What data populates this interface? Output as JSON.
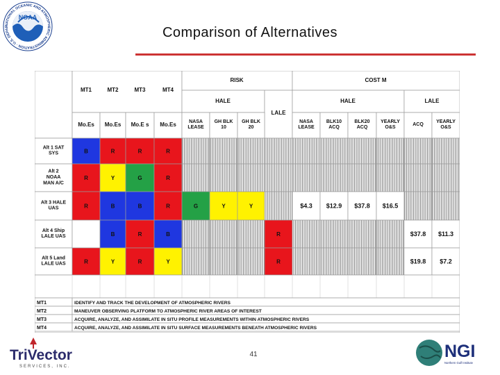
{
  "slide": {
    "title": "Comparison of Alternatives",
    "page_number": "41"
  },
  "table": {
    "group_headers": {
      "risk": "RISK",
      "cost": "COST M"
    },
    "mt_headers": [
      "MT1",
      "MT2",
      "MT3",
      "MT4"
    ],
    "moe_headers": [
      "Mo.Es",
      "Mo.Es",
      "Mo.E s",
      "Mo.Es"
    ],
    "risk_sub": {
      "hale": "HALE",
      "lale": "LALE"
    },
    "risk_cols": [
      "NASA\nLEASE",
      "GH BLK\n10",
      "GH BLK\n20"
    ],
    "cost_sub": {
      "hale": "HALE",
      "lale": "LALE"
    },
    "cost_cols": [
      "NASA\nLEASE",
      "BLK10\nACQ",
      "BLK20\nACQ",
      "YEARLY\nO&S",
      "ACQ",
      "YEARLY\nO&S"
    ],
    "rows": [
      {
        "label": "Alt 1   SAT\nSYS",
        "mt": [
          "B",
          "R",
          "R",
          "R"
        ],
        "risk": [
          "",
          "",
          "",
          ""
        ],
        "cost": [
          "",
          "",
          "",
          "",
          "",
          ""
        ]
      },
      {
        "label": "Alt 2\nNOAA\nMAN A/C",
        "mt": [
          "R",
          "Y",
          "G",
          "R"
        ],
        "risk": [
          "",
          "",
          "",
          ""
        ],
        "cost": [
          "",
          "",
          "",
          "",
          "",
          ""
        ]
      },
      {
        "label": "Alt 3 HALE\nUAS",
        "mt": [
          "R",
          "B",
          "B",
          "R"
        ],
        "risk": [
          "G",
          "Y",
          "Y",
          ""
        ],
        "cost": [
          "$4.3",
          "$12.9",
          "$37.8",
          "$16.5",
          "",
          ""
        ]
      },
      {
        "label": "Alt 4 Ship\nLALE UAS",
        "mt": [
          "",
          "B",
          "R",
          "B"
        ],
        "risk": [
          "",
          "",
          "",
          "R"
        ],
        "cost": [
          "",
          "",
          "",
          "",
          "$37.8",
          "$11.3"
        ]
      },
      {
        "label": "Alt 5 Land\nLALE UAS",
        "mt": [
          "R",
          "Y",
          "R",
          "Y"
        ],
        "risk": [
          "",
          "",
          "",
          "R"
        ],
        "cost": [
          "",
          "",
          "",
          "",
          "$19.8",
          "$7.2"
        ]
      }
    ],
    "legend": [
      {
        "key": "MT1",
        "text": "IDENTIFY AND TRACK THE DEVELOPMENT OF ATMOSPHERIC RIVERS"
      },
      {
        "key": "MT2",
        "text": "MANEUVER OBSERVING PLATFORM TO ATMOSPHERIC RIVER AREAS OF INTEREST"
      },
      {
        "key": "MT3",
        "text": "ACQUIRE, ANALYZE, AND ASSIMILATE IN SITU PROFILE MEASUREMENTS WITHIN ATMOSPHERIC RIVERS"
      },
      {
        "key": "MT4",
        "text": "ACQUIRE, ANALYZE, AND ASSIMILATE IN SITU SURFACE MEASUREMENTS BENEATH ATMOSPHERIC RIVERS"
      }
    ],
    "colors": {
      "B": "#1f37e0",
      "R": "#e8151c",
      "Y": "#fff200",
      "G": "#24a146"
    }
  },
  "logos": {
    "noaa": {
      "text": "NOAA",
      "ring_text": "NATIONAL OCEANIC AND ATMOSPHERIC ADMINISTRATION · U.S. DEPARTMENT OF COMMERCE"
    },
    "trivector": {
      "name": "TriVector",
      "tagline": "SERVICES, INC."
    },
    "ngi": {
      "name": "NGI",
      "tagline": "Northern Gulf Institute"
    }
  }
}
